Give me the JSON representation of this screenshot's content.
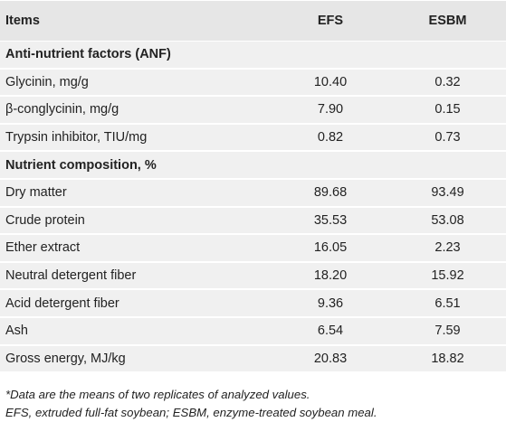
{
  "table": {
    "headers": {
      "items": "Items",
      "efs": "EFS",
      "esbm": "ESBM"
    },
    "rows": [
      {
        "type": "section",
        "label": "Anti-nutrient factors (ANF)",
        "efs": "",
        "esbm": ""
      },
      {
        "type": "data",
        "label": "Glycinin, mg/g",
        "efs": "10.40",
        "esbm": "0.32"
      },
      {
        "type": "data",
        "label": "β-conglycinin, mg/g",
        "efs": "7.90",
        "esbm": "0.15"
      },
      {
        "type": "data",
        "label": "Trypsin inhibitor, TIU/mg",
        "efs": "0.82",
        "esbm": "0.73"
      },
      {
        "type": "section",
        "label": "Nutrient composition, %",
        "efs": "",
        "esbm": ""
      },
      {
        "type": "data",
        "label": "Dry matter",
        "efs": "89.68",
        "esbm": "93.49"
      },
      {
        "type": "data",
        "label": "Crude protein",
        "efs": "35.53",
        "esbm": "53.08"
      },
      {
        "type": "data",
        "label": "Ether extract",
        "efs": "16.05",
        "esbm": "2.23"
      },
      {
        "type": "data",
        "label": "Neutral detergent fiber",
        "efs": "18.20",
        "esbm": "15.92"
      },
      {
        "type": "data",
        "label": "Acid detergent fiber",
        "efs": "9.36",
        "esbm": "6.51"
      },
      {
        "type": "data",
        "label": "Ash",
        "efs": "6.54",
        "esbm": "7.59"
      },
      {
        "type": "data",
        "label": "Gross energy, MJ/kg",
        "efs": "20.83",
        "esbm": "18.82"
      }
    ]
  },
  "footnotes": {
    "note1": "*Data are the means of two replicates of analyzed values.",
    "note2": "EFS, extruded full-fat soybean; ESBM, enzyme-treated soybean meal."
  }
}
